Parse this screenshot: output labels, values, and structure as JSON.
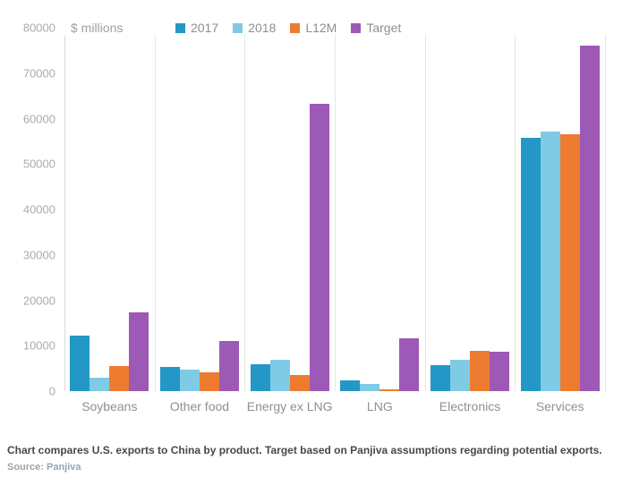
{
  "chart": {
    "unit_label": "$ millions"
  },
  "caption": {
    "text": "Chart compares U.S. exports to China by product. Target based on Panjiva assumptions regarding potential exports.",
    "source": "Source: Panjiva"
  },
  "chart_data": {
    "type": "bar",
    "title": "",
    "ylabel": "$ millions",
    "xlabel": "",
    "ylim": [
      0,
      80000
    ],
    "ytick_step": 10000,
    "ytick_labels": [
      "80000",
      "70000",
      "60000",
      "50000",
      "40000",
      "30000",
      "20000",
      "10000",
      "0"
    ],
    "grid": "vertical-category-separators-only",
    "legend_position": "top",
    "categories": [
      "Soybeans",
      "Other food",
      "Energy ex LNG",
      "LNG",
      "Electronics",
      "Services"
    ],
    "series": [
      {
        "name": "2017",
        "color": "#2397c5",
        "values": [
          12200,
          5400,
          6000,
          2400,
          5700,
          55800
        ]
      },
      {
        "name": "2018",
        "color": "#7fcbe5",
        "values": [
          3000,
          4700,
          6900,
          1600,
          6900,
          57100
        ]
      },
      {
        "name": "L12M",
        "color": "#ee7c30",
        "values": [
          5500,
          4200,
          3600,
          400,
          8800,
          56500
        ]
      },
      {
        "name": "Target",
        "color": "#9c59b5",
        "values": [
          17400,
          11100,
          63200,
          11600,
          8700,
          76000
        ]
      }
    ],
    "colors": {
      "axis_line": "#d6dadd",
      "separator": "#e5e7e9",
      "tick_text": "#a7abaf",
      "category_text": "#8a9197"
    }
  }
}
